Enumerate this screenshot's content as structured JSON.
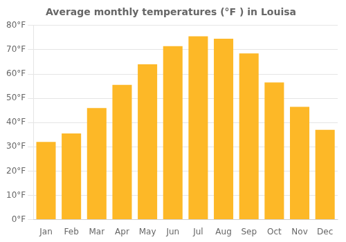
{
  "chart_data": {
    "type": "bar",
    "title": "Average monthly temperatures (°F ) in Louisa",
    "categories": [
      "Jan",
      "Feb",
      "Mar",
      "Apr",
      "May",
      "Jun",
      "Jul",
      "Aug",
      "Sep",
      "Oct",
      "Nov",
      "Dec"
    ],
    "values": [
      32,
      35.5,
      46,
      55.5,
      64,
      71.5,
      75.5,
      74.5,
      68.5,
      56.5,
      46.5,
      37
    ],
    "color": "#FDB827",
    "ylim": [
      0,
      80
    ],
    "yticks": [
      {
        "value": 0,
        "label": "0°F"
      },
      {
        "value": 10,
        "label": "10°F"
      },
      {
        "value": 20,
        "label": "20°F"
      },
      {
        "value": 30,
        "label": "30°F"
      },
      {
        "value": 40,
        "label": "40°F"
      },
      {
        "value": 50,
        "label": "50°F"
      },
      {
        "value": 60,
        "label": "60°F"
      },
      {
        "value": 70,
        "label": "70°F"
      },
      {
        "value": 80,
        "label": "80°F"
      }
    ],
    "grid": true
  }
}
